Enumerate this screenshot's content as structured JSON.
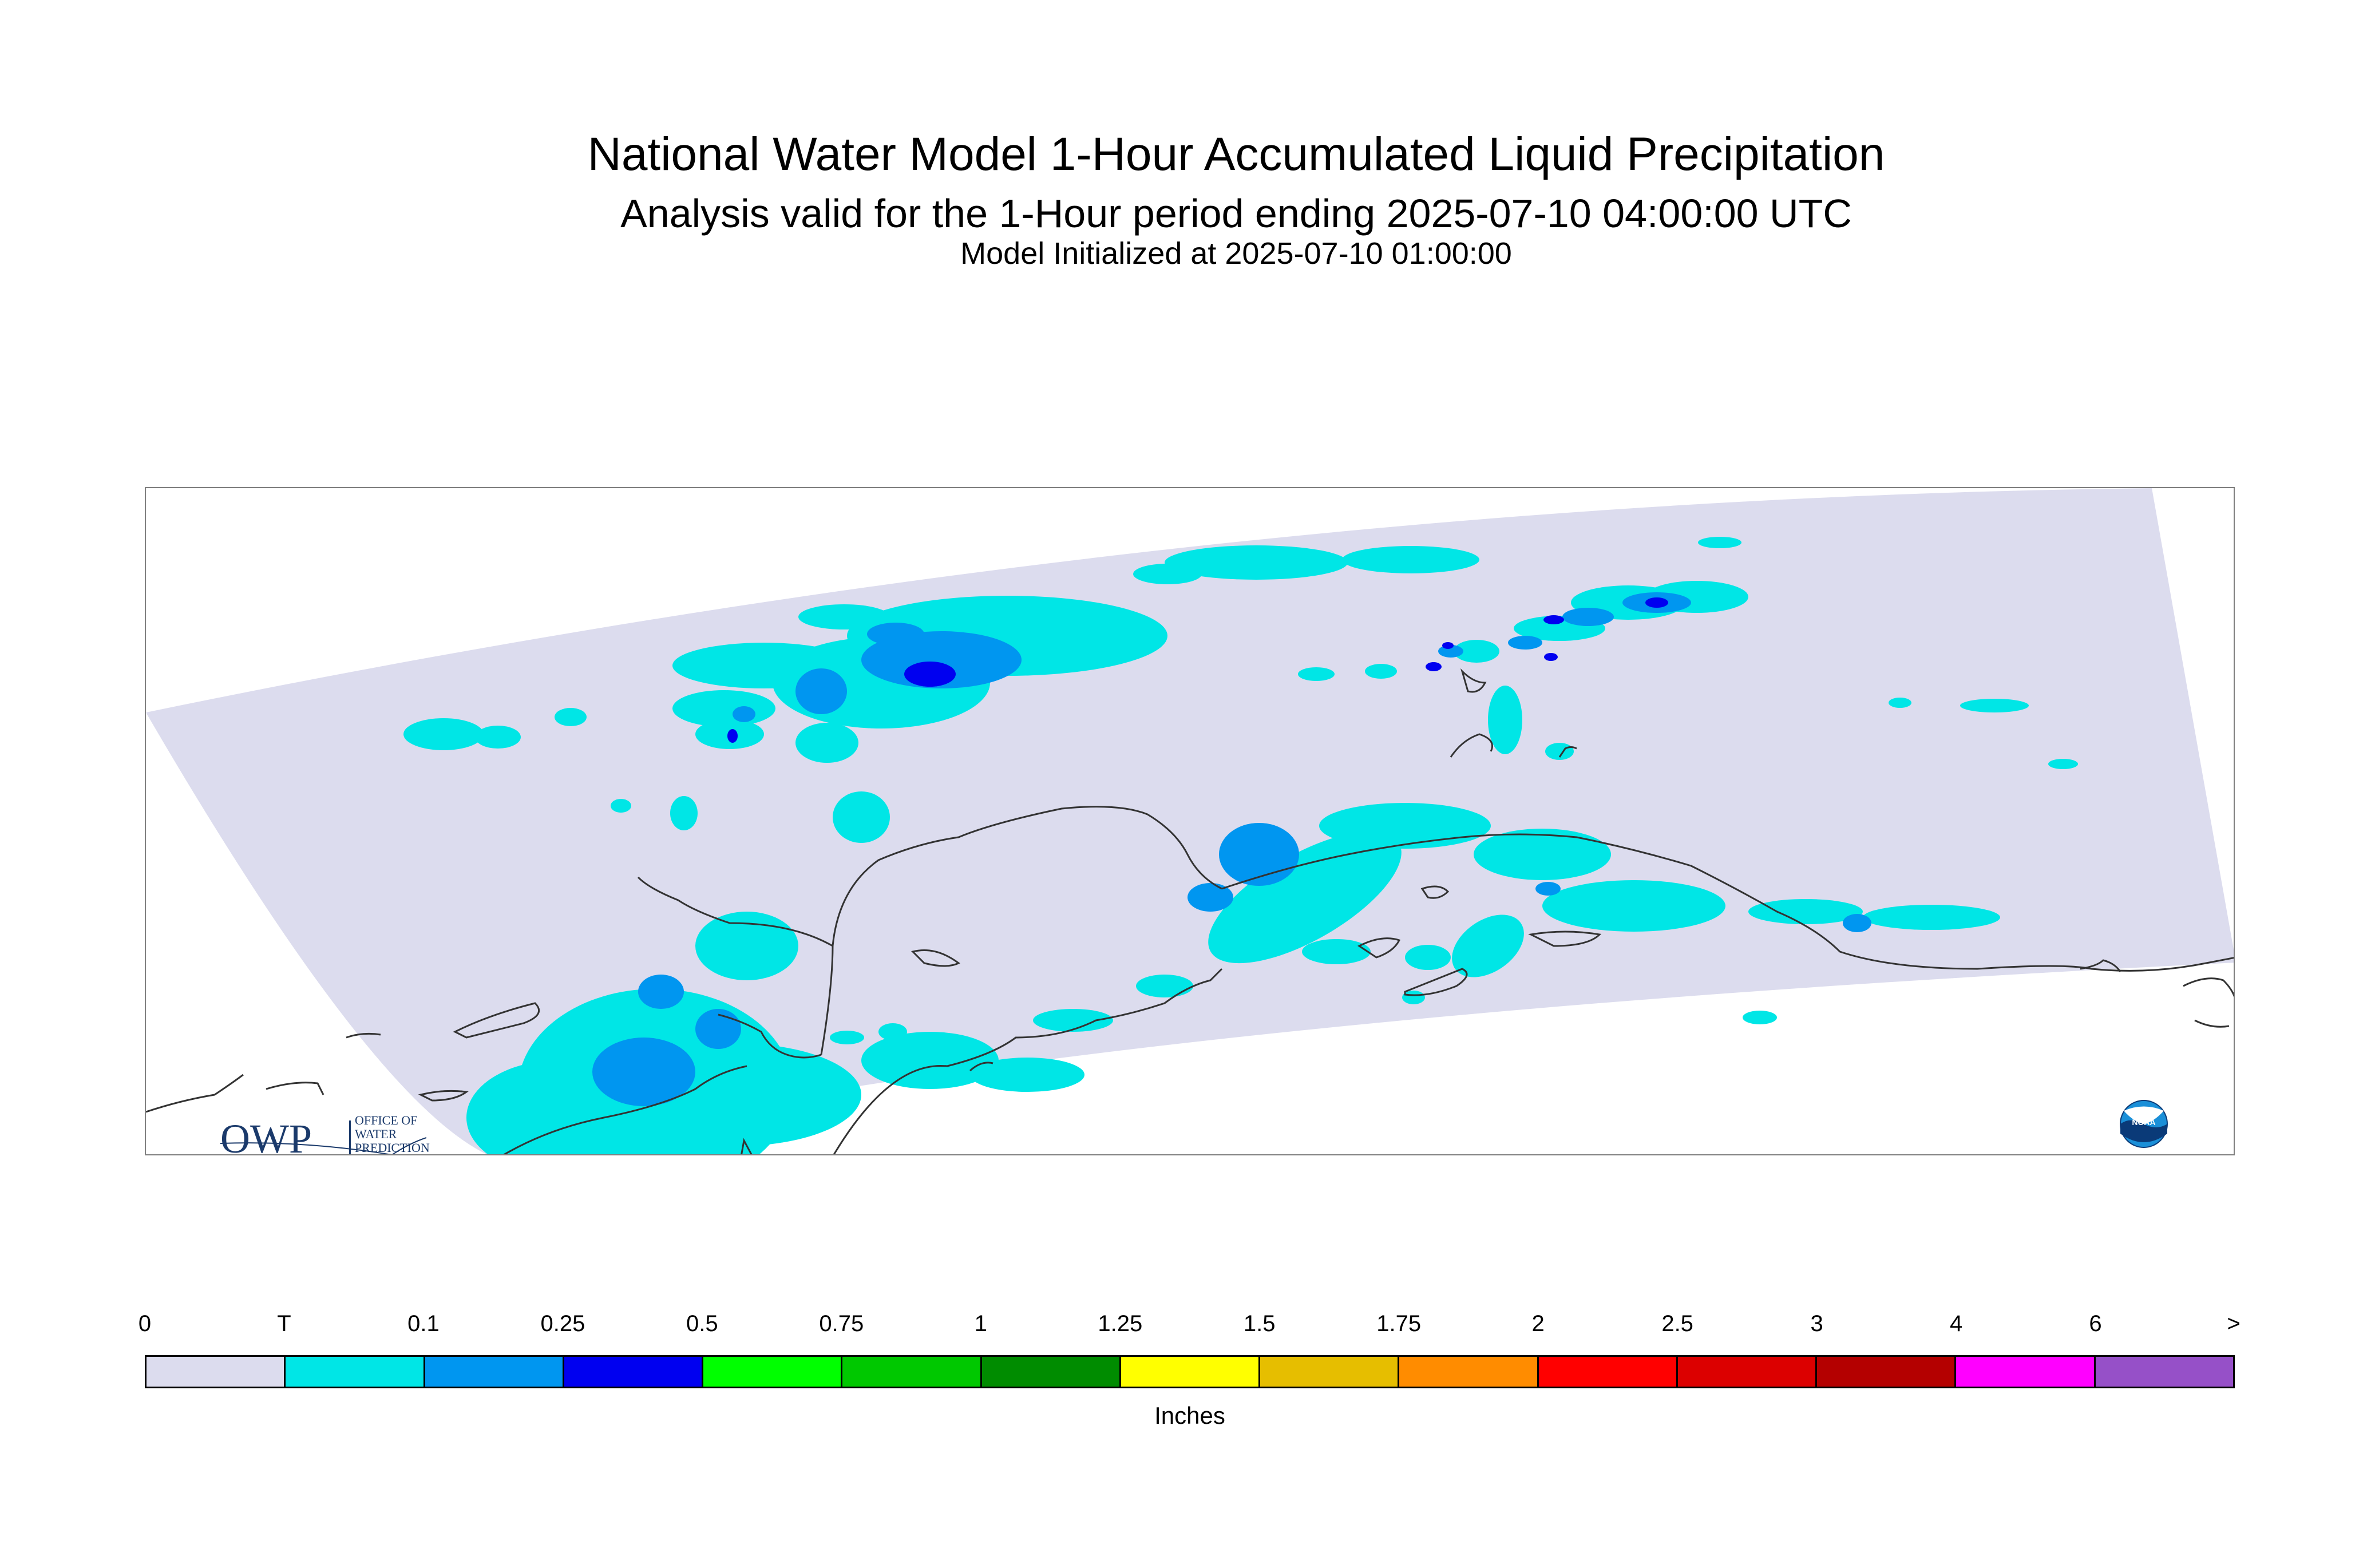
{
  "title": {
    "main": "National Water Model 1-Hour Accumulated Liquid Precipitation",
    "sub": "Analysis valid for the 1-Hour period ending 2025-07-10 04:00:00 UTC",
    "init": "Model Initialized at 2025-07-10 01:00:00"
  },
  "logos": {
    "owp_mark": "OWP",
    "owp_text": [
      "OFFICE OF",
      "WATER",
      "PREDICTION"
    ],
    "noaa_text": "NOAA"
  },
  "colors": {
    "domain": "#dcdcee",
    "trace": "#00e6e6",
    "light_blue": "#0096f0",
    "dark_blue": "#0000f0",
    "coast": "#333333"
  },
  "legend": {
    "units": "Inches",
    "labels": [
      "0",
      "T",
      "0.1",
      "0.25",
      "0.5",
      "0.75",
      "1",
      "1.25",
      "1.5",
      "1.75",
      "2",
      "2.5",
      "3",
      "4",
      "6",
      ">"
    ],
    "colors": [
      "#dcdcee",
      "#00e6e6",
      "#0096f0",
      "#0000f0",
      "#00ff00",
      "#00c800",
      "#008c00",
      "#ffff00",
      "#e6be00",
      "#ff8c00",
      "#ff0000",
      "#dc0000",
      "#b40000",
      "#ff00ff",
      "#9650c8"
    ]
  }
}
